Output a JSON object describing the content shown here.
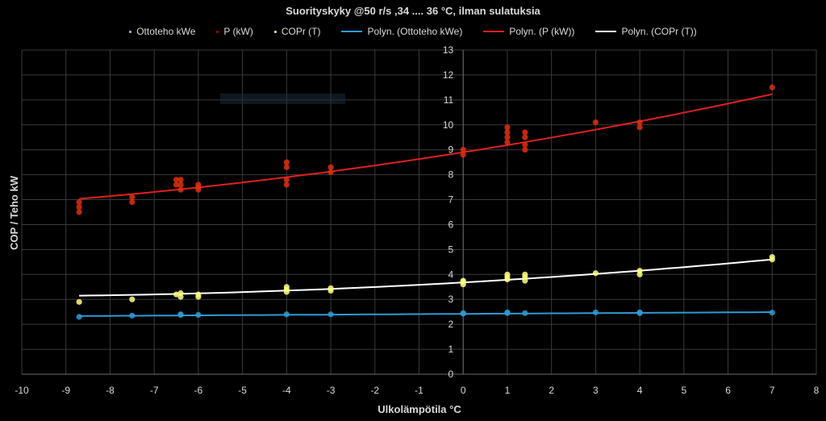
{
  "chart_data": {
    "type": "scatter",
    "title": "Suorityskyky @50 r/s ,34 .... 36 °C, ilman sulatuksia",
    "xlabel": "Ulkolämpötila °C",
    "ylabel": "COP / Teho kW",
    "xlim": [
      -10,
      8
    ],
    "ylim": [
      0,
      13
    ],
    "x_ticks": [
      "-10",
      "-9",
      "-8",
      "-7",
      "-6",
      "-5",
      "-4",
      "-3",
      "-2",
      "-1",
      "0",
      "1",
      "2",
      "3",
      "4",
      "5",
      "6",
      "7",
      "8"
    ],
    "y_ticks": [
      "0",
      "1",
      "2",
      "3",
      "4",
      "5",
      "6",
      "7",
      "8",
      "9",
      "10",
      "11",
      "12",
      "13"
    ],
    "grid": true,
    "legend_position": "top",
    "legend": [
      {
        "name": "Ottoteho kWe",
        "kind": "marker",
        "color": "#9dc3e6"
      },
      {
        "name": "P (kW)",
        "kind": "marker",
        "color": "#c00000"
      },
      {
        "name": "COPr (T)",
        "kind": "marker",
        "color": "#ffff99"
      },
      {
        "name": "Polyn. (Ottoteho kWe)",
        "kind": "line",
        "color": "#2e9bd6"
      },
      {
        "name": "Polyn. (P (kW))",
        "kind": "line",
        "color": "#e02020"
      },
      {
        "name": "Polyn. (COPr (T))",
        "kind": "line",
        "color": "#ffffff"
      }
    ],
    "series": [
      {
        "name": "Ottoteho kWe",
        "color": "#2e9bd6",
        "points": [
          [
            -8.7,
            2.3
          ],
          [
            -7.5,
            2.35
          ],
          [
            -6.4,
            2.4
          ],
          [
            -6.4,
            2.38
          ],
          [
            -6.0,
            2.38
          ],
          [
            -4.0,
            2.4
          ],
          [
            -3.0,
            2.4
          ],
          [
            0.0,
            2.43
          ],
          [
            0.0,
            2.45
          ],
          [
            1.0,
            2.48
          ],
          [
            1.0,
            2.45
          ],
          [
            1.4,
            2.45
          ],
          [
            3.0,
            2.48
          ],
          [
            4.0,
            2.45
          ],
          [
            4.0,
            2.48
          ],
          [
            7.0,
            2.47
          ]
        ]
      },
      {
        "name": "P (kW)",
        "color": "#e03010",
        "points": [
          [
            -8.7,
            6.5
          ],
          [
            -8.7,
            6.7
          ],
          [
            -8.7,
            6.9
          ],
          [
            -7.5,
            6.9
          ],
          [
            -7.5,
            7.1
          ],
          [
            -6.5,
            7.6
          ],
          [
            -6.5,
            7.8
          ],
          [
            -6.4,
            7.4
          ],
          [
            -6.4,
            7.6
          ],
          [
            -6.4,
            7.8
          ],
          [
            -6.0,
            7.4
          ],
          [
            -6.0,
            7.5
          ],
          [
            -6.0,
            7.6
          ],
          [
            -4.0,
            7.6
          ],
          [
            -4.0,
            7.8
          ],
          [
            -4.0,
            8.3
          ],
          [
            -4.0,
            8.5
          ],
          [
            -3.0,
            8.1
          ],
          [
            -3.0,
            8.3
          ],
          [
            0.0,
            8.8
          ],
          [
            0.0,
            9.0
          ],
          [
            1.0,
            9.3
          ],
          [
            1.0,
            9.5
          ],
          [
            1.0,
            9.7
          ],
          [
            1.0,
            9.9
          ],
          [
            1.4,
            9.0
          ],
          [
            1.4,
            9.2
          ],
          [
            1.4,
            9.5
          ],
          [
            1.4,
            9.7
          ],
          [
            3.0,
            10.1
          ],
          [
            4.0,
            9.9
          ],
          [
            4.0,
            10.1
          ],
          [
            7.0,
            11.5
          ]
        ]
      },
      {
        "name": "COPr (T)",
        "color": "#ffff80",
        "points": [
          [
            -8.7,
            2.9
          ],
          [
            -7.5,
            3.0
          ],
          [
            -6.5,
            3.2
          ],
          [
            -6.4,
            3.1
          ],
          [
            -6.4,
            3.25
          ],
          [
            -6.0,
            3.1
          ],
          [
            -6.0,
            3.2
          ],
          [
            -4.0,
            3.3
          ],
          [
            -4.0,
            3.4
          ],
          [
            -4.0,
            3.5
          ],
          [
            -3.0,
            3.35
          ],
          [
            -3.0,
            3.45
          ],
          [
            0.0,
            3.6
          ],
          [
            0.0,
            3.7
          ],
          [
            0.0,
            3.75
          ],
          [
            1.0,
            3.8
          ],
          [
            1.0,
            3.9
          ],
          [
            1.0,
            4.0
          ],
          [
            1.4,
            3.75
          ],
          [
            1.4,
            3.9
          ],
          [
            1.4,
            4.0
          ],
          [
            3.0,
            4.05
          ],
          [
            4.0,
            4.0
          ],
          [
            4.0,
            4.15
          ],
          [
            7.0,
            4.6
          ],
          [
            7.0,
            4.7
          ]
        ]
      }
    ],
    "trendlines": [
      {
        "name": "Polyn. (Ottoteho kWe)",
        "color": "#2e9bd6",
        "coeffs": [
          2.42,
          0.01,
          0.0
        ],
        "range": [
          -8.7,
          7
        ]
      },
      {
        "name": "Polyn. (P (kW))",
        "color": "#e02020",
        "coeffs": [
          8.9,
          0.28,
          0.0075
        ],
        "range": [
          -8.7,
          7
        ]
      },
      {
        "name": "Polyn. (COPr (T))",
        "color": "#ffffff",
        "coeffs": [
          3.68,
          0.1,
          0.0045
        ],
        "range": [
          -8.7,
          7
        ]
      }
    ]
  }
}
